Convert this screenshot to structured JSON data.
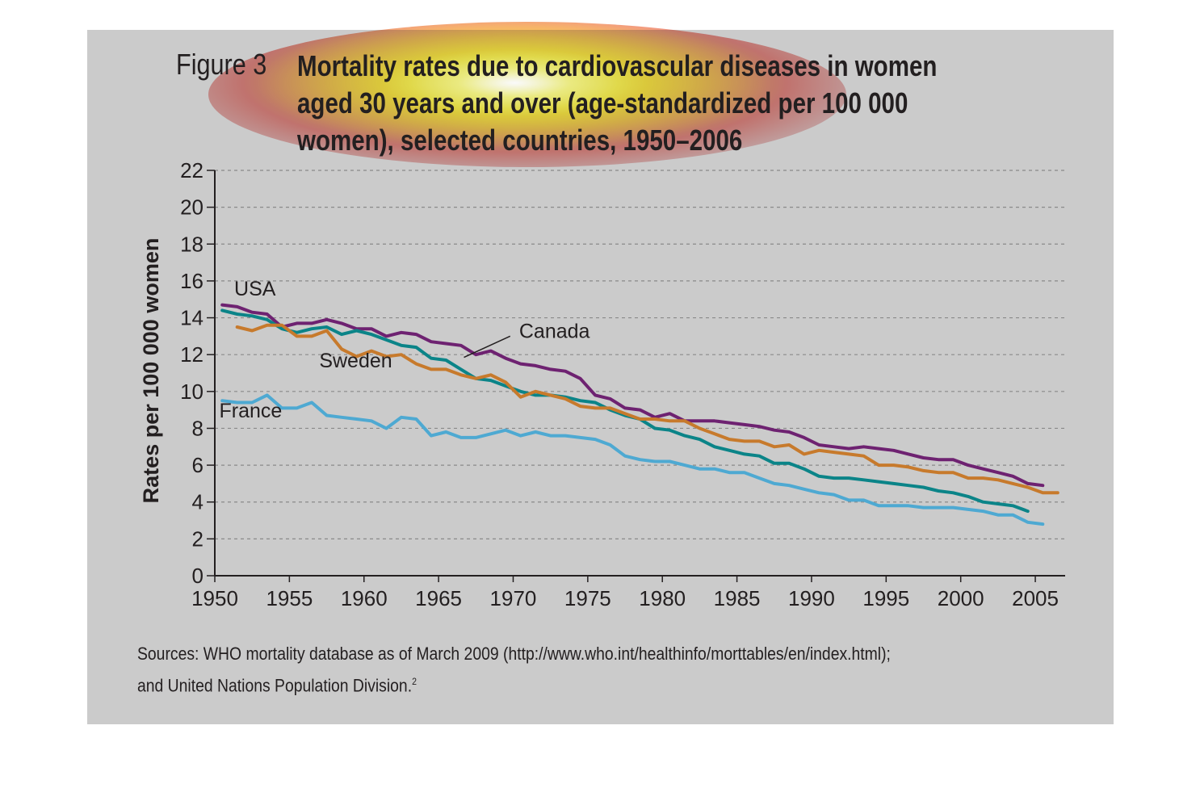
{
  "figure": {
    "label": "Figure 3",
    "title_lines": [
      "Mortality rates due to cardiovascular diseases in women",
      "aged 30 years and over (age-standardized per 100 000",
      "women), selected countries, 1950–2006"
    ]
  },
  "sources": {
    "line1": "Sources: WHO mortality database as of March 2009 (http://www.who.int/healthinfo/morttables/en/index.html);",
    "line2": "and United Nations Population Division.",
    "footnote_mark": "2"
  },
  "colors": {
    "background": "#cbcbcb",
    "USA": "#6e2271",
    "Canada": "#0b8488",
    "Sweden": "#c77a2c",
    "France": "#4ea9d2",
    "grid": "#8a8a8a",
    "axis": "#231f20"
  },
  "chart_data": {
    "type": "line",
    "title": "Mortality rates due to cardiovascular diseases in women aged 30 years and over (age-standardized per 100 000 women), selected countries, 1950–2006",
    "xlabel": "",
    "ylabel": "Rates per 100 000 women",
    "xlim": [
      1950,
      2007
    ],
    "ylim": [
      0,
      22
    ],
    "x_ticks": [
      1950,
      1955,
      1960,
      1965,
      1970,
      1975,
      1980,
      1985,
      1990,
      1995,
      2000,
      2005
    ],
    "y_ticks": [
      0,
      2,
      4,
      6,
      8,
      10,
      12,
      14,
      16,
      18,
      20,
      22
    ],
    "grid": "horizontal dashed",
    "series": [
      {
        "name": "USA",
        "points": [
          [
            1950.5,
            14.7
          ],
          [
            1951.5,
            14.6
          ],
          [
            1952.5,
            14.3
          ],
          [
            1953.5,
            14.2
          ],
          [
            1954.5,
            13.5
          ],
          [
            1955.5,
            13.7
          ],
          [
            1956.5,
            13.7
          ],
          [
            1957.5,
            13.9
          ],
          [
            1958.5,
            13.7
          ],
          [
            1959.5,
            13.4
          ],
          [
            1960.5,
            13.4
          ],
          [
            1961.5,
            13.0
          ],
          [
            1962.5,
            13.2
          ],
          [
            1963.5,
            13.1
          ],
          [
            1964.5,
            12.7
          ],
          [
            1965.5,
            12.6
          ],
          [
            1966.5,
            12.5
          ],
          [
            1967.5,
            12.0
          ],
          [
            1968.5,
            12.2
          ],
          [
            1969.5,
            11.8
          ],
          [
            1970.5,
            11.5
          ],
          [
            1971.5,
            11.4
          ],
          [
            1972.5,
            11.2
          ],
          [
            1973.5,
            11.1
          ],
          [
            1974.5,
            10.7
          ],
          [
            1975.5,
            9.8
          ],
          [
            1976.5,
            9.6
          ],
          [
            1977.5,
            9.1
          ],
          [
            1978.5,
            9.0
          ],
          [
            1979.5,
            8.6
          ],
          [
            1980.5,
            8.8
          ],
          [
            1981.5,
            8.4
          ],
          [
            1982.5,
            8.4
          ],
          [
            1983.5,
            8.4
          ],
          [
            1984.5,
            8.3
          ],
          [
            1985.5,
            8.2
          ],
          [
            1986.5,
            8.1
          ],
          [
            1987.5,
            7.9
          ],
          [
            1988.5,
            7.8
          ],
          [
            1989.5,
            7.5
          ],
          [
            1990.5,
            7.1
          ],
          [
            1991.5,
            7.0
          ],
          [
            1992.5,
            6.9
          ],
          [
            1993.5,
            7.0
          ],
          [
            1994.5,
            6.9
          ],
          [
            1995.5,
            6.8
          ],
          [
            1996.5,
            6.6
          ],
          [
            1997.5,
            6.4
          ],
          [
            1998.5,
            6.3
          ],
          [
            1999.5,
            6.3
          ],
          [
            2000.5,
            6.0
          ],
          [
            2001.5,
            5.8
          ],
          [
            2002.5,
            5.6
          ],
          [
            2003.5,
            5.4
          ],
          [
            2004.5,
            5.0
          ],
          [
            2005.5,
            4.9
          ]
        ]
      },
      {
        "name": "Canada",
        "points": [
          [
            1950.5,
            14.4
          ],
          [
            1951.5,
            14.2
          ],
          [
            1952.5,
            14.1
          ],
          [
            1953.5,
            13.9
          ],
          [
            1954.5,
            13.4
          ],
          [
            1955.5,
            13.2
          ],
          [
            1956.5,
            13.4
          ],
          [
            1957.5,
            13.5
          ],
          [
            1958.5,
            13.1
          ],
          [
            1959.5,
            13.3
          ],
          [
            1960.5,
            13.1
          ],
          [
            1961.5,
            12.8
          ],
          [
            1962.5,
            12.5
          ],
          [
            1963.5,
            12.4
          ],
          [
            1964.5,
            11.8
          ],
          [
            1965.5,
            11.7
          ],
          [
            1966.5,
            11.2
          ],
          [
            1967.5,
            10.7
          ],
          [
            1968.5,
            10.6
          ],
          [
            1969.5,
            10.3
          ],
          [
            1970.5,
            10.0
          ],
          [
            1971.5,
            9.8
          ],
          [
            1972.5,
            9.8
          ],
          [
            1973.5,
            9.7
          ],
          [
            1974.5,
            9.5
          ],
          [
            1975.5,
            9.4
          ],
          [
            1976.5,
            9.0
          ],
          [
            1977.5,
            8.7
          ],
          [
            1978.5,
            8.5
          ],
          [
            1979.5,
            8.0
          ],
          [
            1980.5,
            7.9
          ],
          [
            1981.5,
            7.6
          ],
          [
            1982.5,
            7.4
          ],
          [
            1983.5,
            7.0
          ],
          [
            1984.5,
            6.8
          ],
          [
            1985.5,
            6.6
          ],
          [
            1986.5,
            6.5
          ],
          [
            1987.5,
            6.1
          ],
          [
            1988.5,
            6.1
          ],
          [
            1989.5,
            5.8
          ],
          [
            1990.5,
            5.4
          ],
          [
            1991.5,
            5.3
          ],
          [
            1992.5,
            5.3
          ],
          [
            1993.5,
            5.2
          ],
          [
            1994.5,
            5.1
          ],
          [
            1995.5,
            5.0
          ],
          [
            1996.5,
            4.9
          ],
          [
            1997.5,
            4.8
          ],
          [
            1998.5,
            4.6
          ],
          [
            1999.5,
            4.5
          ],
          [
            2000.5,
            4.3
          ],
          [
            2001.5,
            4.0
          ],
          [
            2002.5,
            3.9
          ],
          [
            2003.5,
            3.8
          ],
          [
            2004.5,
            3.5
          ]
        ]
      },
      {
        "name": "Sweden",
        "points": [
          [
            1951.5,
            13.5
          ],
          [
            1952.5,
            13.3
          ],
          [
            1953.5,
            13.6
          ],
          [
            1954.5,
            13.6
          ],
          [
            1955.5,
            13.0
          ],
          [
            1956.5,
            13.0
          ],
          [
            1957.5,
            13.3
          ],
          [
            1958.5,
            12.3
          ],
          [
            1959.5,
            11.9
          ],
          [
            1960.5,
            12.2
          ],
          [
            1961.5,
            11.9
          ],
          [
            1962.5,
            12.0
          ],
          [
            1963.5,
            11.5
          ],
          [
            1964.5,
            11.2
          ],
          [
            1965.5,
            11.2
          ],
          [
            1966.5,
            10.9
          ],
          [
            1967.5,
            10.7
          ],
          [
            1968.5,
            10.9
          ],
          [
            1969.5,
            10.5
          ],
          [
            1970.5,
            9.7
          ],
          [
            1971.5,
            10.0
          ],
          [
            1972.5,
            9.8
          ],
          [
            1973.5,
            9.6
          ],
          [
            1974.5,
            9.2
          ],
          [
            1975.5,
            9.1
          ],
          [
            1976.5,
            9.1
          ],
          [
            1977.5,
            8.8
          ],
          [
            1978.5,
            8.5
          ],
          [
            1979.5,
            8.5
          ],
          [
            1980.5,
            8.4
          ],
          [
            1981.5,
            8.4
          ],
          [
            1982.5,
            8.0
          ],
          [
            1983.5,
            7.7
          ],
          [
            1984.5,
            7.4
          ],
          [
            1985.5,
            7.3
          ],
          [
            1986.5,
            7.3
          ],
          [
            1987.5,
            7.0
          ],
          [
            1988.5,
            7.1
          ],
          [
            1989.5,
            6.6
          ],
          [
            1990.5,
            6.8
          ],
          [
            1991.5,
            6.7
          ],
          [
            1992.5,
            6.6
          ],
          [
            1993.5,
            6.5
          ],
          [
            1994.5,
            6.0
          ],
          [
            1995.5,
            6.0
          ],
          [
            1996.5,
            5.9
          ],
          [
            1997.5,
            5.7
          ],
          [
            1998.5,
            5.6
          ],
          [
            1999.5,
            5.6
          ],
          [
            2000.5,
            5.3
          ],
          [
            2001.5,
            5.3
          ],
          [
            2002.5,
            5.2
          ],
          [
            2003.5,
            5.0
          ],
          [
            2004.5,
            4.8
          ],
          [
            2005.5,
            4.5
          ],
          [
            2006.5,
            4.5
          ]
        ]
      },
      {
        "name": "France",
        "points": [
          [
            1950.5,
            9.5
          ],
          [
            1951.5,
            9.4
          ],
          [
            1952.5,
            9.4
          ],
          [
            1953.5,
            9.8
          ],
          [
            1954.5,
            9.1
          ],
          [
            1955.5,
            9.1
          ],
          [
            1956.5,
            9.4
          ],
          [
            1957.5,
            8.7
          ],
          [
            1958.5,
            8.6
          ],
          [
            1959.5,
            8.5
          ],
          [
            1960.5,
            8.4
          ],
          [
            1961.5,
            8.0
          ],
          [
            1962.5,
            8.6
          ],
          [
            1963.5,
            8.5
          ],
          [
            1964.5,
            7.6
          ],
          [
            1965.5,
            7.8
          ],
          [
            1966.5,
            7.5
          ],
          [
            1967.5,
            7.5
          ],
          [
            1968.5,
            7.7
          ],
          [
            1969.5,
            7.9
          ],
          [
            1970.5,
            7.6
          ],
          [
            1971.5,
            7.8
          ],
          [
            1972.5,
            7.6
          ],
          [
            1973.5,
            7.6
          ],
          [
            1974.5,
            7.5
          ],
          [
            1975.5,
            7.4
          ],
          [
            1976.5,
            7.1
          ],
          [
            1977.5,
            6.5
          ],
          [
            1978.5,
            6.3
          ],
          [
            1979.5,
            6.2
          ],
          [
            1980.5,
            6.2
          ],
          [
            1981.5,
            6.0
          ],
          [
            1982.5,
            5.8
          ],
          [
            1983.5,
            5.8
          ],
          [
            1984.5,
            5.6
          ],
          [
            1985.5,
            5.6
          ],
          [
            1986.5,
            5.3
          ],
          [
            1987.5,
            5.0
          ],
          [
            1988.5,
            4.9
          ],
          [
            1989.5,
            4.7
          ],
          [
            1990.5,
            4.5
          ],
          [
            1991.5,
            4.4
          ],
          [
            1992.5,
            4.1
          ],
          [
            1993.5,
            4.1
          ],
          [
            1994.5,
            3.8
          ],
          [
            1995.5,
            3.8
          ],
          [
            1996.5,
            3.8
          ],
          [
            1997.5,
            3.7
          ],
          [
            1998.5,
            3.7
          ],
          [
            1999.5,
            3.7
          ],
          [
            2000.5,
            3.6
          ],
          [
            2001.5,
            3.5
          ],
          [
            2002.5,
            3.3
          ],
          [
            2003.5,
            3.3
          ],
          [
            2004.5,
            2.9
          ],
          [
            2005.5,
            2.8
          ]
        ]
      }
    ],
    "annotations": [
      "USA",
      "Canada",
      "Sweden",
      "France"
    ]
  }
}
